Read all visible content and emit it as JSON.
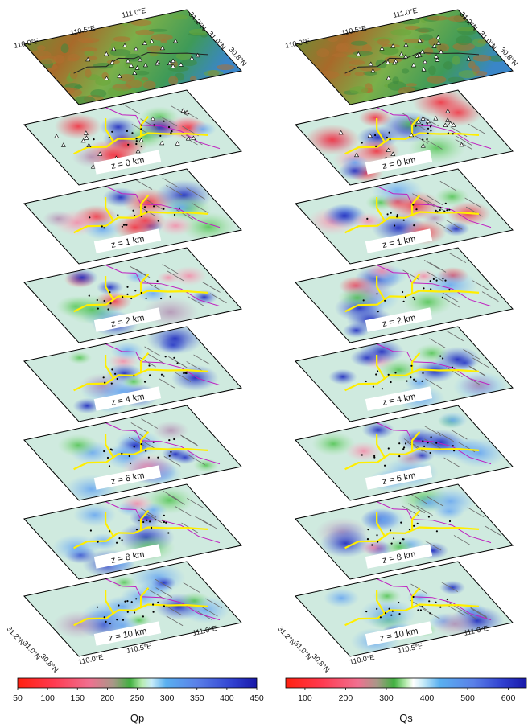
{
  "colors": {
    "fault": "#c020c0",
    "river": "#ffee00",
    "fault_gray": "#6a6a6a",
    "low_q": "#e8505e",
    "mid_q": "#9fe09a",
    "high_q": "#2b3ac8"
  },
  "panels": [
    {
      "name": "qp-stack",
      "top_labels": {
        "lon1": "110.0°E",
        "lon2": "110.5°E",
        "lon3": "111.0°E",
        "lat1": "31.2°N",
        "lat2": "31.0°N",
        "lat3": "30.8°N"
      },
      "depth_labels": [
        "z = 0 km",
        "z = 1 km",
        "z = 2 km",
        "z = 4 km",
        "z = 6 km",
        "z = 8 km",
        "z = 10 km"
      ],
      "bottom_labels": {
        "lat1": "31.2°N",
        "lat2": "31.0°N",
        "lat3": "30.8°N",
        "lon1": "110.0°E",
        "lon2": "110.5°E",
        "lon3": "111.0°E"
      },
      "colorbar": {
        "ticks": [
          "50",
          "100",
          "150",
          "200",
          "250",
          "300",
          "350",
          "400",
          "450"
        ],
        "title": "Qp"
      }
    },
    {
      "name": "qs-stack",
      "top_labels": {
        "lon1": "110.0°E",
        "lon2": "110.5°E",
        "lon3": "111.0°E",
        "lat1": "31.2°N",
        "lat2": "31.0°N",
        "lat3": "30.8°N"
      },
      "depth_labels": [
        "z = 0 km",
        "z = 1 km",
        "z = 2 km",
        "z = 4 km",
        "z = 6 km",
        "z = 8 km",
        "z = 10 km"
      ],
      "bottom_labels": {
        "lat1": "31.2°N",
        "lat2": "31.0°N",
        "lat3": "30.8°N",
        "lon1": "110.0°E",
        "lon2": "110.5°E",
        "lon3": "111.0°E"
      },
      "colorbar": {
        "ticks": [
          "100",
          "200",
          "300",
          "400",
          "500",
          "600"
        ],
        "title": "Qs"
      }
    }
  ]
}
